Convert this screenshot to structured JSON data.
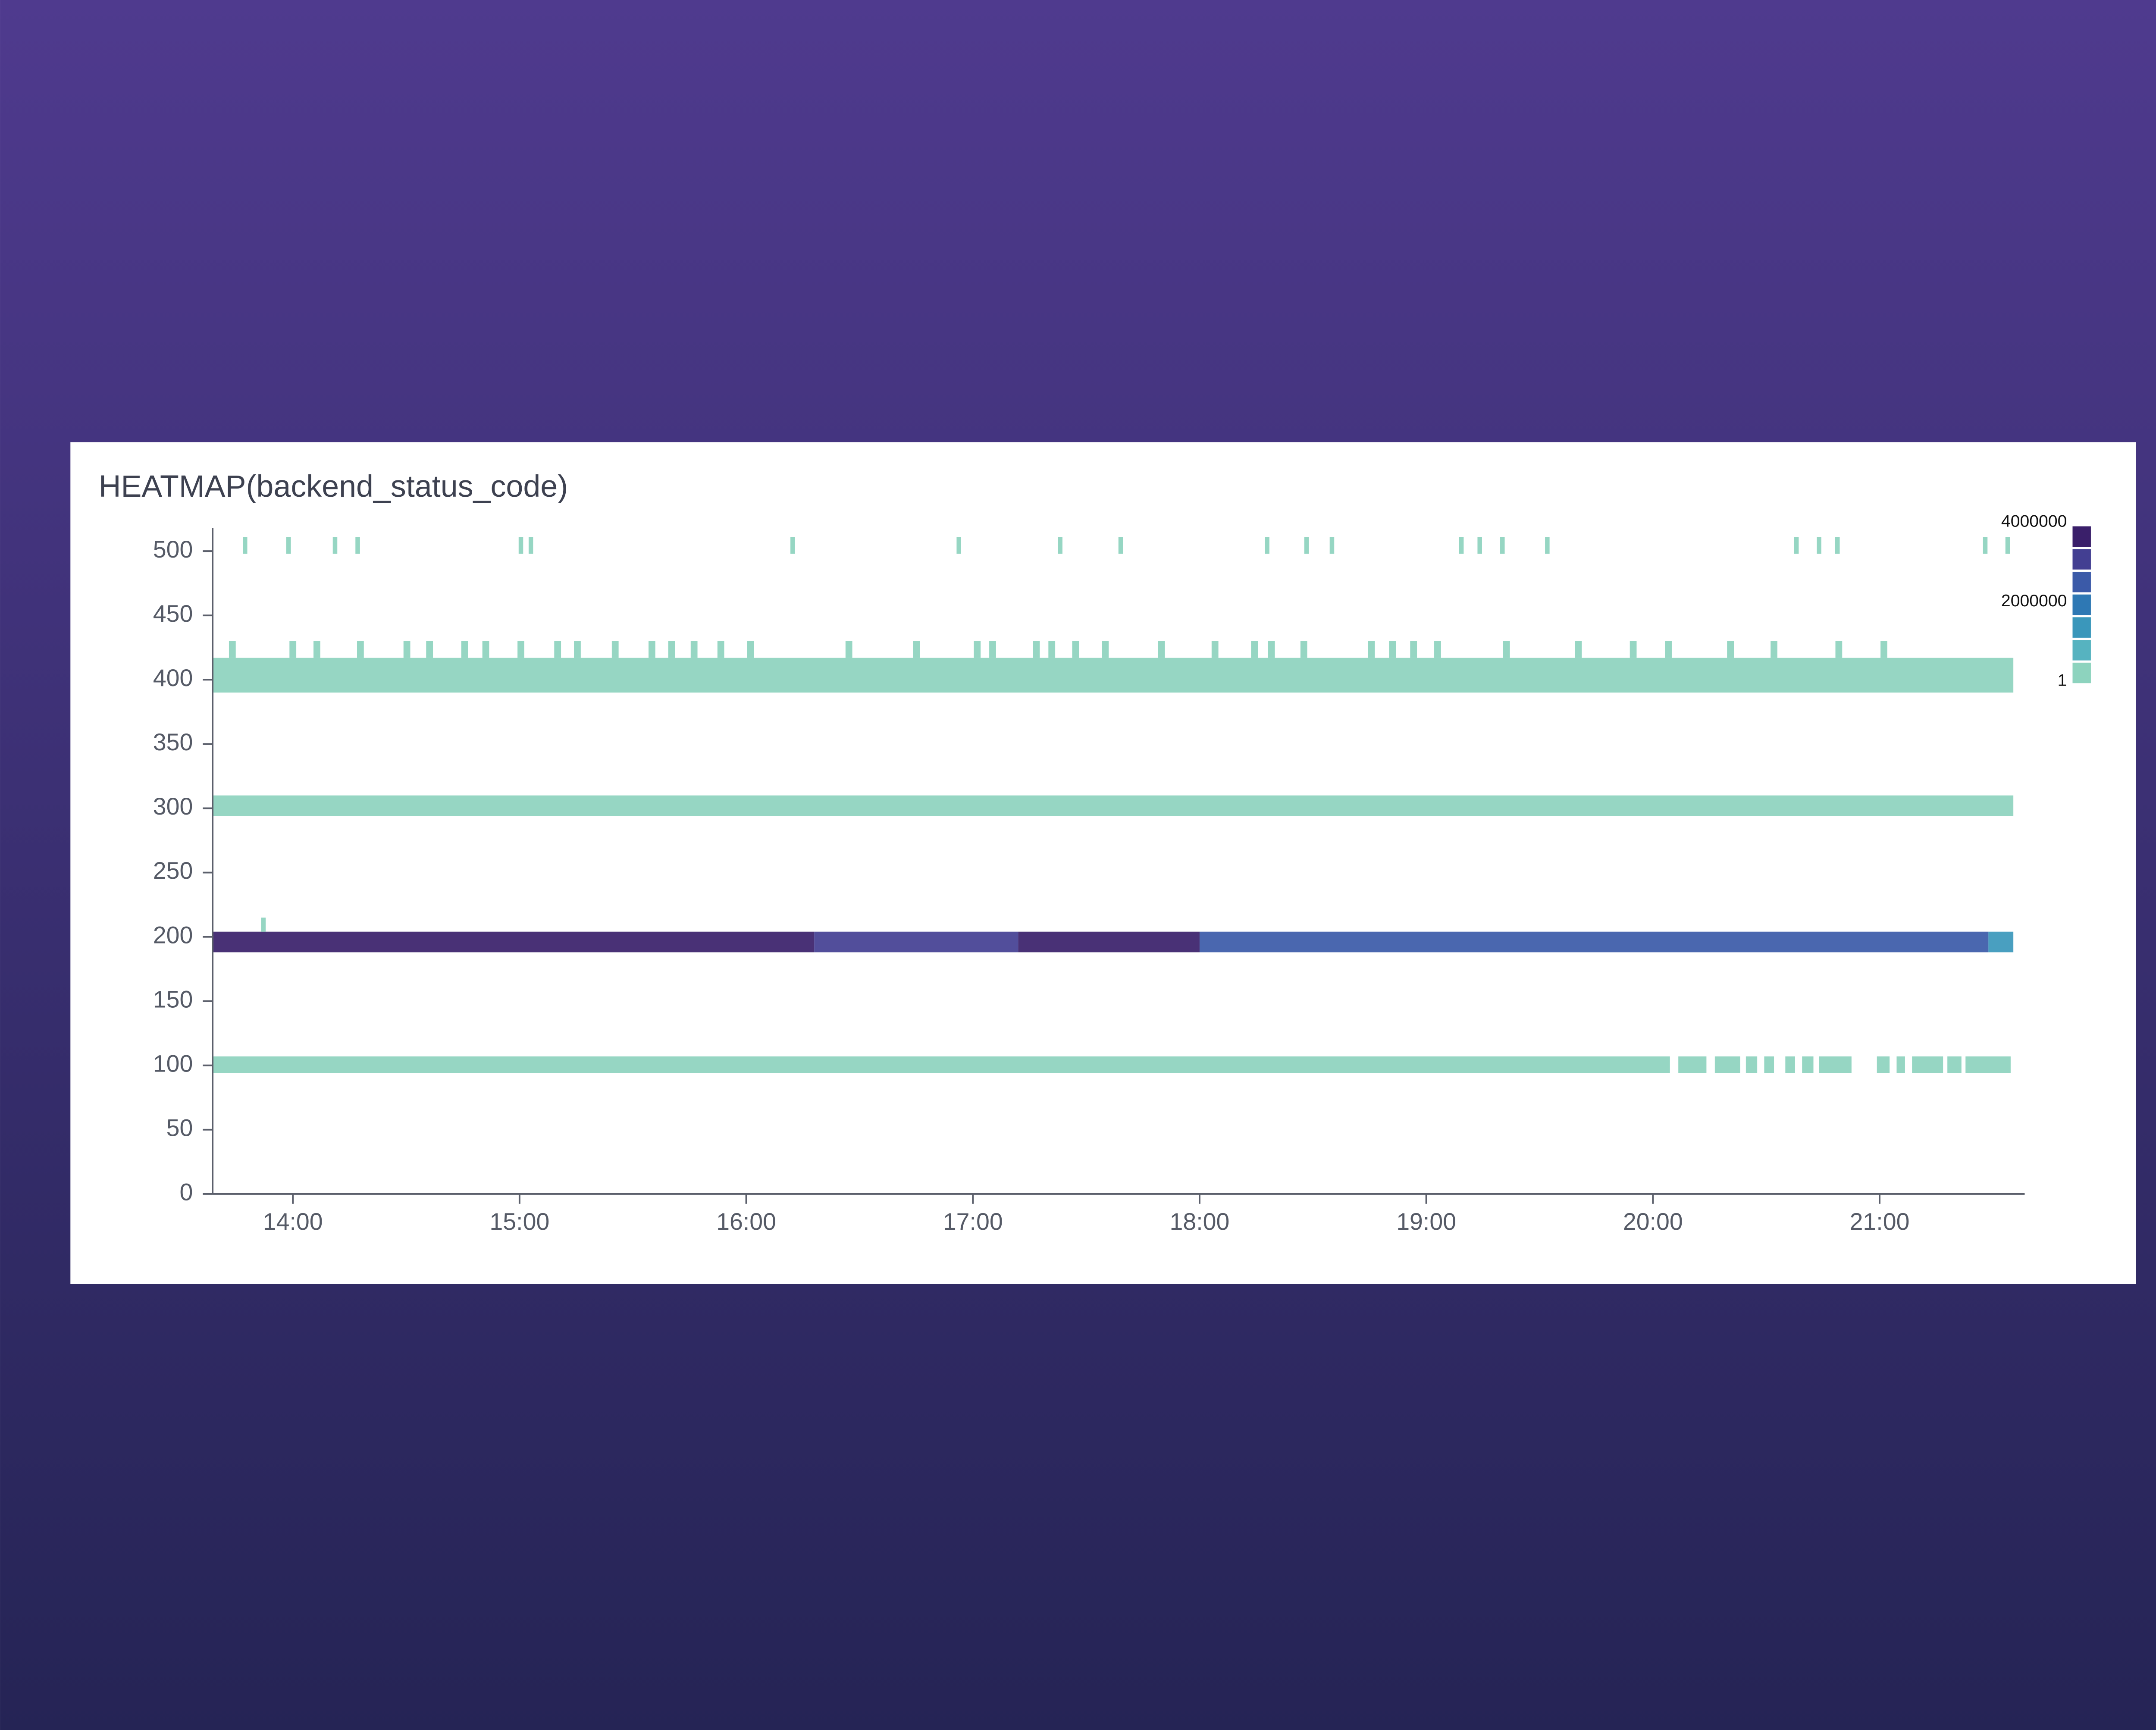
{
  "chart_data": {
    "type": "heatmap",
    "title": "HEATMAP(backend_status_code)",
    "xlim": [
      13.646,
      21.64
    ],
    "xticks": [
      {
        "value": 14,
        "label": "14:00"
      },
      {
        "value": 15,
        "label": "15:00"
      },
      {
        "value": 16,
        "label": "16:00"
      },
      {
        "value": 17,
        "label": "17:00"
      },
      {
        "value": 18,
        "label": "18:00"
      },
      {
        "value": 19,
        "label": "19:00"
      },
      {
        "value": 20,
        "label": "20:00"
      },
      {
        "value": 21,
        "label": "21:00"
      }
    ],
    "ylim": [
      0,
      518
    ],
    "yticks": [
      0,
      50,
      100,
      150,
      200,
      250,
      300,
      350,
      400,
      450,
      500
    ],
    "colorscale": {
      "colors": [
        "#8dd3be",
        "#56b3c0",
        "#3a97bb",
        "#2e78b4",
        "#3b5aa8",
        "#433f92",
        "#3a1f6a"
      ],
      "lim": [
        1,
        4000000
      ],
      "ticks": [
        1,
        2000000,
        4000000
      ]
    },
    "bands": [
      {
        "y0": 94,
        "y1": 107,
        "segments": [
          {
            "x0": 13.646,
            "x1": 20.075,
            "value": 1
          },
          {
            "x0": 20.112,
            "x1": 20.236,
            "value": 1
          },
          {
            "x0": 20.273,
            "x1": 20.385,
            "value": 1
          },
          {
            "x0": 20.41,
            "x1": 20.46,
            "value": 1
          },
          {
            "x0": 20.491,
            "x1": 20.534,
            "value": 1
          },
          {
            "x0": 20.584,
            "x1": 20.627,
            "value": 1
          },
          {
            "x0": 20.658,
            "x1": 20.708,
            "value": 1
          },
          {
            "x0": 20.733,
            "x1": 20.876,
            "value": 1
          },
          {
            "x0": 20.988,
            "x1": 21.044,
            "value": 1
          },
          {
            "x0": 21.075,
            "x1": 21.112,
            "value": 1
          },
          {
            "x0": 21.143,
            "x1": 21.28,
            "value": 1
          },
          {
            "x0": 21.299,
            "x1": 21.361,
            "value": 1
          },
          {
            "x0": 21.379,
            "x1": 21.578,
            "value": 1
          }
        ]
      },
      {
        "y0": 188,
        "y1": 204,
        "segments": [
          {
            "x0": 13.646,
            "x1": 16.3,
            "value": 3700000
          },
          {
            "x0": 16.3,
            "x1": 17.2,
            "value": 3000000
          },
          {
            "x0": 17.2,
            "x1": 18.0,
            "value": 3600000
          },
          {
            "x0": 18.0,
            "x1": 21.48,
            "value": 2600000
          },
          {
            "x0": 21.48,
            "x1": 21.59,
            "value": 1200000
          }
        ]
      },
      {
        "y0": 294,
        "y1": 310,
        "segments": [
          {
            "x0": 13.646,
            "x1": 21.59,
            "value": 1
          }
        ]
      },
      {
        "y0": 390,
        "y1": 417,
        "segments": [
          {
            "x0": 13.646,
            "x1": 21.59,
            "value": 300000
          }
        ]
      }
    ],
    "spikes": [
      {
        "y0": 204,
        "y1": 215,
        "width": 0.02,
        "value": 1,
        "x": [
          13.87
        ]
      },
      {
        "y0": 417,
        "y1": 430,
        "width": 0.03,
        "value": 1,
        "x": [
          13.733,
          14.0,
          14.106,
          14.298,
          14.503,
          14.603,
          14.758,
          14.851,
          15.006,
          15.168,
          15.255,
          15.422,
          15.584,
          15.671,
          15.77,
          15.888,
          16.019,
          16.453,
          16.752,
          17.019,
          17.087,
          17.28,
          17.348,
          17.453,
          17.584,
          17.832,
          18.068,
          18.242,
          18.317,
          18.46,
          18.758,
          18.851,
          18.944,
          19.05,
          19.354,
          19.671,
          19.913,
          20.068,
          20.342,
          20.534,
          20.82,
          21.019
        ]
      },
      {
        "y0": 498,
        "y1": 511,
        "width": 0.02,
        "value": 1,
        "x": [
          13.789,
          13.981,
          14.186,
          14.286,
          15.006,
          15.05,
          16.205,
          16.938,
          17.385,
          17.652,
          18.298,
          18.472,
          18.584,
          19.155,
          19.236,
          19.336,
          19.534,
          20.633,
          20.733,
          20.814,
          21.466,
          21.565
        ]
      }
    ]
  }
}
